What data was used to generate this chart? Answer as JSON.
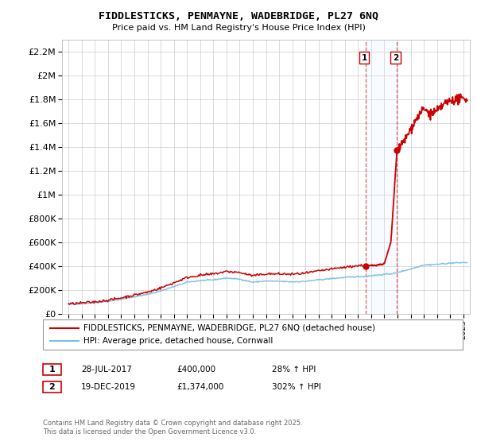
{
  "title": "FIDDLESTICKS, PENMAYNE, WADEBRIDGE, PL27 6NQ",
  "subtitle": "Price paid vs. HM Land Registry's House Price Index (HPI)",
  "legend_line1": "FIDDLESTICKS, PENMAYNE, WADEBRIDGE, PL27 6NQ (detached house)",
  "legend_line2": "HPI: Average price, detached house, Cornwall",
  "sale1_date": "28-JUL-2017",
  "sale1_price": "£400,000",
  "sale1_pct": "28% ↑ HPI",
  "sale2_date": "19-DEC-2019",
  "sale2_price": "£1,374,000",
  "sale2_pct": "302% ↑ HPI",
  "footer": "Contains HM Land Registry data © Crown copyright and database right 2025.\nThis data is licensed under the Open Government Licence v3.0.",
  "hpi_color": "#7bbfea",
  "property_color": "#cc0000",
  "highlight_color": "#ddeeff",
  "sale1_x": 2017.57,
  "sale1_y": 400000,
  "sale2_x": 2019.96,
  "sale2_y": 1374000,
  "ylim": [
    0,
    2300000
  ],
  "xlim": [
    1994.5,
    2025.5
  ],
  "background": "#ffffff",
  "grid_color": "#cccccc"
}
